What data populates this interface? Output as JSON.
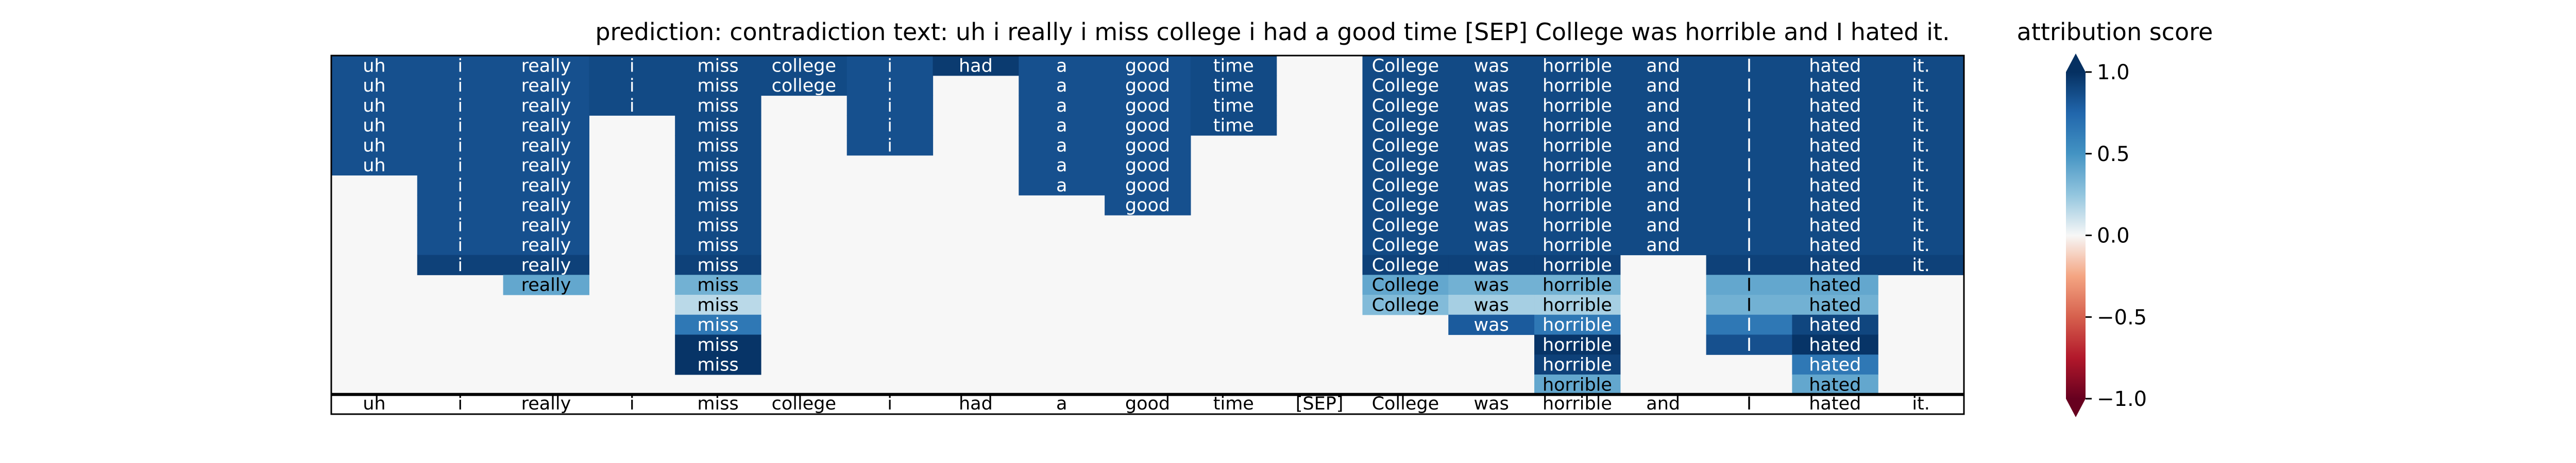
{
  "chart_data": {
    "type": "heatmap",
    "title": "prediction:  contradiction     text:  uh i really i miss college i had a good time [SEP] College was horrible and I hated it.",
    "colorbar_label": "attribution score",
    "colorbar_ticks": [
      "1.0",
      "0.5",
      "0.0",
      "−0.5",
      "−1.0"
    ],
    "colorbar_range": [
      -1.0,
      1.0
    ],
    "colormap": "RdBu",
    "tokens": [
      "uh",
      "i",
      "really",
      "i",
      "miss",
      "college",
      "i",
      "had",
      "a",
      "good",
      "time",
      "[SEP]",
      "College",
      "was",
      "horrible",
      "and",
      "I",
      "hated",
      "it."
    ],
    "rows": 17,
    "column_values": [
      [
        0.85,
        0.85,
        0.85,
        0.85,
        0.85,
        0.85,
        null,
        null,
        null,
        null,
        null,
        null,
        null,
        null,
        null,
        null,
        null
      ],
      [
        0.85,
        0.85,
        0.85,
        0.85,
        0.85,
        0.85,
        0.85,
        0.85,
        0.85,
        0.85,
        0.92,
        null,
        null,
        null,
        null,
        null,
        null
      ],
      [
        0.85,
        0.85,
        0.85,
        0.85,
        0.85,
        0.85,
        0.85,
        0.85,
        0.85,
        0.85,
        0.92,
        0.4,
        null,
        null,
        null,
        null,
        null
      ],
      [
        0.88,
        0.88,
        0.88,
        null,
        null,
        null,
        null,
        null,
        null,
        null,
        null,
        null,
        null,
        null,
        null,
        null,
        null
      ],
      [
        0.88,
        0.88,
        0.88,
        0.88,
        0.88,
        0.88,
        0.88,
        0.88,
        0.88,
        0.88,
        0.92,
        0.35,
        0.15,
        0.65,
        0.98,
        0.98,
        null
      ],
      [
        0.88,
        0.88,
        null,
        null,
        null,
        null,
        null,
        null,
        null,
        null,
        null,
        null,
        null,
        null,
        null,
        null,
        null
      ],
      [
        0.85,
        0.85,
        0.85,
        0.85,
        0.85,
        null,
        null,
        null,
        null,
        null,
        null,
        null,
        null,
        null,
        null,
        null,
        null
      ],
      [
        0.95,
        null,
        null,
        null,
        null,
        null,
        null,
        null,
        null,
        null,
        null,
        null,
        null,
        null,
        null,
        null,
        null
      ],
      [
        0.85,
        0.85,
        0.85,
        0.85,
        0.85,
        0.85,
        0.85,
        null,
        null,
        null,
        null,
        null,
        null,
        null,
        null,
        null,
        null
      ],
      [
        0.85,
        0.85,
        0.85,
        0.85,
        0.85,
        0.85,
        0.85,
        0.85,
        null,
        null,
        null,
        null,
        null,
        null,
        null,
        null,
        null
      ],
      [
        0.88,
        0.88,
        0.88,
        0.88,
        null,
        null,
        null,
        null,
        null,
        null,
        null,
        null,
        null,
        null,
        null,
        null,
        null
      ],
      [
        null,
        null,
        null,
        null,
        null,
        null,
        null,
        null,
        null,
        null,
        null,
        null,
        null,
        null,
        null,
        null,
        null
      ],
      [
        0.88,
        0.88,
        0.88,
        0.88,
        0.88,
        0.88,
        0.88,
        0.88,
        0.88,
        0.88,
        0.92,
        0.4,
        0.3,
        null,
        null,
        null,
        null
      ],
      [
        0.88,
        0.88,
        0.88,
        0.88,
        0.88,
        0.88,
        0.88,
        0.88,
        0.88,
        0.88,
        0.92,
        0.35,
        0.2,
        0.8,
        null,
        null,
        null
      ],
      [
        0.88,
        0.88,
        0.88,
        0.88,
        0.88,
        0.88,
        0.88,
        0.88,
        0.88,
        0.88,
        0.92,
        0.35,
        0.2,
        0.65,
        0.98,
        0.92,
        0.4
      ],
      [
        0.88,
        0.88,
        0.88,
        0.88,
        0.88,
        0.88,
        0.88,
        0.88,
        0.88,
        0.88,
        null,
        null,
        null,
        null,
        null,
        null,
        null
      ],
      [
        0.88,
        0.88,
        0.88,
        0.88,
        0.88,
        0.88,
        0.88,
        0.88,
        0.88,
        0.88,
        0.92,
        0.4,
        0.35,
        0.65,
        0.85,
        null,
        null
      ],
      [
        0.88,
        0.88,
        0.88,
        0.88,
        0.88,
        0.88,
        0.88,
        0.88,
        0.88,
        0.88,
        0.92,
        0.4,
        0.35,
        0.9,
        0.98,
        0.65,
        0.4
      ],
      [
        0.88,
        0.88,
        0.88,
        0.88,
        0.88,
        0.88,
        0.88,
        0.88,
        0.88,
        0.88,
        0.92,
        null,
        null,
        null,
        null,
        null,
        null
      ]
    ]
  }
}
